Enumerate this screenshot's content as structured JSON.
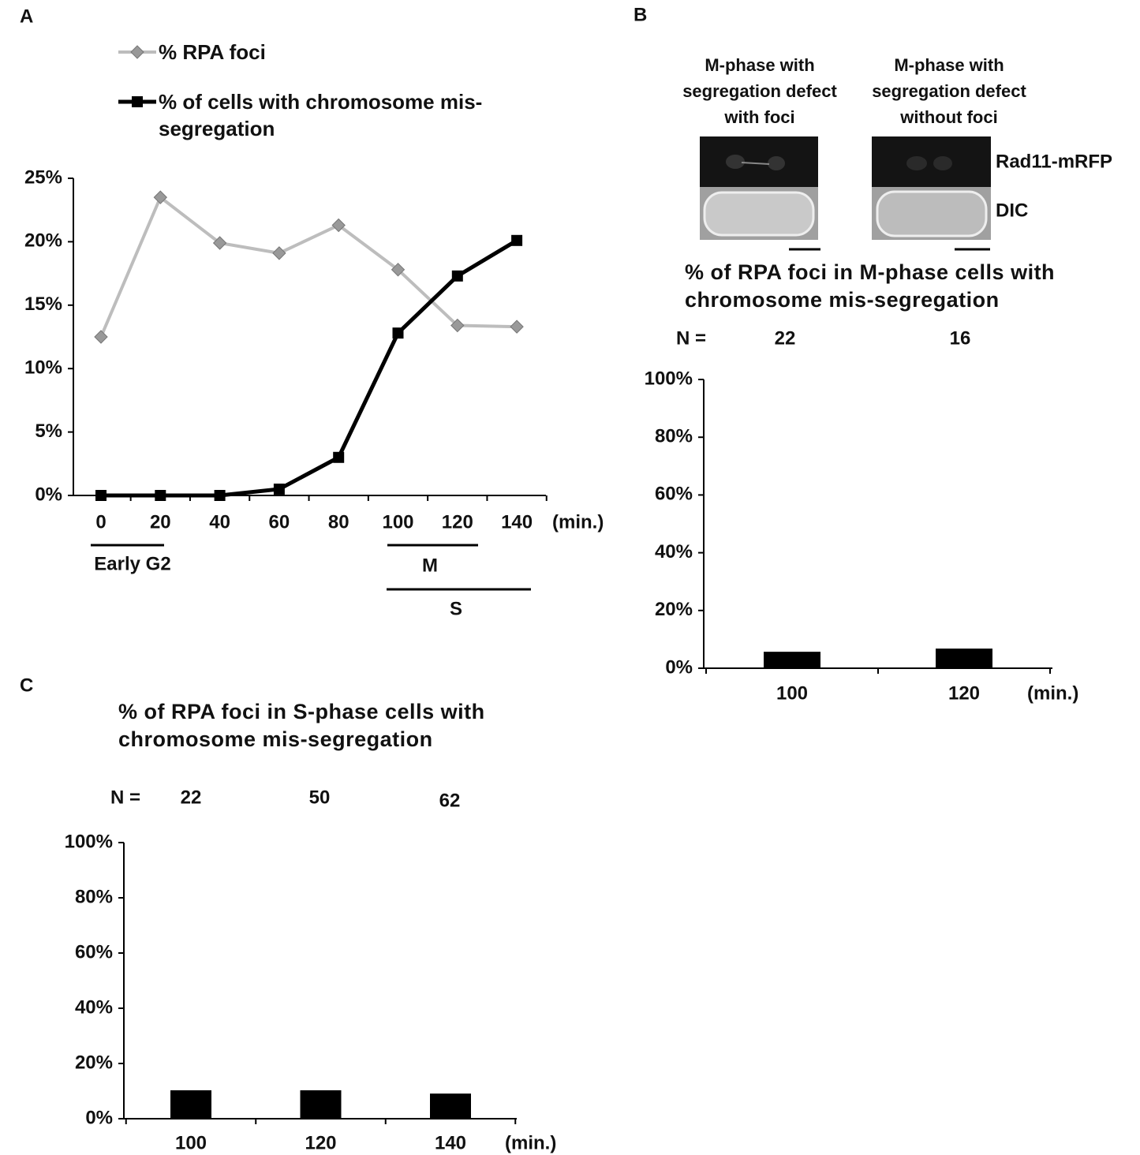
{
  "chart_data": [
    {
      "type": "line",
      "panel": "A",
      "categories": [
        "0",
        "20",
        "40",
        "60",
        "80",
        "100",
        "120",
        "140"
      ],
      "series": [
        {
          "name": "% RPA foci",
          "color": "#bdbdbd",
          "marker": "diamond",
          "marker_color": "#999999",
          "values": [
            12.5,
            23.5,
            19.9,
            19.1,
            21.3,
            17.8,
            13.4,
            13.3
          ]
        },
        {
          "name": "% of cells with chromosome mis-segregation",
          "color": "#000000",
          "marker": "square",
          "marker_color": "#000000",
          "values": [
            0,
            0,
            0,
            0.5,
            3,
            12.8,
            17.3,
            20.1
          ]
        }
      ],
      "ylim": [
        0,
        25
      ],
      "yticks": [
        {
          "value": 0,
          "label": "0%"
        },
        {
          "value": 5,
          "label": "5%"
        },
        {
          "value": 10,
          "label": "10%"
        },
        {
          "value": 15,
          "label": "15%"
        },
        {
          "value": 20,
          "label": "20%"
        },
        {
          "value": 25,
          "label": "25%"
        }
      ],
      "xlabel": "(min.)",
      "phases": [
        "Early G2",
        "M",
        "S"
      ]
    },
    {
      "type": "bar",
      "panel": "B",
      "title": "% of RPA foci in M-phase cells with chromosome mis-segregation",
      "images": [
        "M-phase with segregation defect with foci",
        "M-phase with segregation defect without foci"
      ],
      "channels": [
        "Rad11-mRFP",
        "DIC"
      ],
      "n_label": "N =",
      "n_values": [
        22,
        16
      ],
      "categories": [
        "100",
        "120"
      ],
      "values": [
        5.7,
        6.8
      ],
      "color": "#000000",
      "ylim": [
        0,
        100
      ],
      "yticks": [
        {
          "value": 0,
          "label": "0%"
        },
        {
          "value": 20,
          "label": "20%"
        },
        {
          "value": 40,
          "label": "40%"
        },
        {
          "value": 60,
          "label": "60%"
        },
        {
          "value": 80,
          "label": "80%"
        },
        {
          "value": 100,
          "label": "100%"
        }
      ],
      "xlabel": "(min.)"
    },
    {
      "type": "bar",
      "panel": "C",
      "title": "% of RPA foci in S-phase cells with chromosome mis-segregation",
      "n_label": "N =",
      "n_values": [
        22,
        50,
        62
      ],
      "categories": [
        "100",
        "120",
        "140"
      ],
      "values": [
        10.3,
        10.3,
        9.1
      ],
      "color": "#000000",
      "ylim": [
        0,
        100
      ],
      "yticks": [
        {
          "value": 0,
          "label": "0%"
        },
        {
          "value": 20,
          "label": "20%"
        },
        {
          "value": 40,
          "label": "40%"
        },
        {
          "value": 60,
          "label": "60%"
        },
        {
          "value": 80,
          "label": "80%"
        },
        {
          "value": 100,
          "label": "100%"
        }
      ],
      "xlabel": "(min.)"
    }
  ]
}
